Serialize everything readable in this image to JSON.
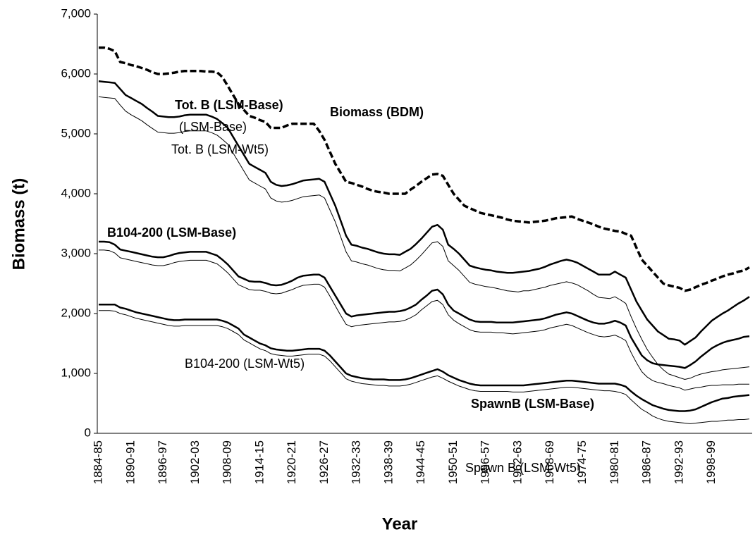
{
  "chart_data": {
    "type": "line",
    "x_label": "Year",
    "y_label": "Biomass (t)",
    "annotations": [
      "(LSM-Base)"
    ],
    "categories": [
      "1884-85",
      null,
      null,
      null,
      null,
      null,
      "1890-91",
      null,
      null,
      null,
      null,
      null,
      "1896-97",
      null,
      null,
      null,
      null,
      null,
      "1902-03",
      null,
      null,
      null,
      null,
      null,
      "1908-09",
      null,
      null,
      null,
      null,
      null,
      "1914-15",
      null,
      null,
      null,
      null,
      null,
      "1920-21",
      null,
      null,
      null,
      null,
      null,
      "1926-27",
      null,
      null,
      null,
      null,
      null,
      "1932-33",
      null,
      null,
      null,
      null,
      null,
      "1938-39",
      null,
      null,
      null,
      null,
      null,
      "1944-45",
      null,
      null,
      null,
      null,
      null,
      "1950-51",
      null,
      null,
      null,
      null,
      null,
      "1956-57",
      null,
      null,
      null,
      null,
      null,
      "1962-63",
      null,
      null,
      null,
      null,
      null,
      "1968-69",
      null,
      null,
      null,
      null,
      null,
      "1974-75",
      null,
      null,
      null,
      null,
      null,
      "1980-81",
      null,
      null,
      null,
      null,
      null,
      "1986-87",
      null,
      null,
      null,
      null,
      null,
      "1992-93",
      null,
      null,
      null,
      null,
      null,
      "1998-99",
      null,
      null,
      null,
      null,
      null,
      null,
      null
    ],
    "ylim": [
      0,
      7000
    ],
    "yticks": [
      0,
      {
        "value": 1000,
        "label": "1,000"
      },
      {
        "value": 2000,
        "label": "2,000"
      },
      {
        "value": 3000,
        "label": "3,000"
      },
      {
        "value": 4000,
        "label": "4,000"
      },
      {
        "value": 5000,
        "label": "5,000"
      },
      {
        "value": 6000,
        "label": "6,000"
      },
      {
        "value": 7000,
        "label": "7,000"
      }
    ],
    "grid": false,
    "series": [
      {
        "name": "Biomass (BDM)",
        "color": "#000000",
        "style": "dashed",
        "values": [
          6440,
          6440,
          6420,
          6380,
          6200,
          6180,
          6150,
          6130,
          6100,
          6070,
          6030,
          6000,
          6000,
          6010,
          6020,
          6040,
          6050,
          6050,
          6050,
          6050,
          6040,
          6040,
          6030,
          5950,
          5800,
          5650,
          5500,
          5400,
          5300,
          5270,
          5230,
          5200,
          5100,
          5100,
          5100,
          5140,
          5170,
          5170,
          5170,
          5170,
          5170,
          5050,
          4900,
          4700,
          4500,
          4350,
          4200,
          4180,
          4150,
          4120,
          4080,
          4050,
          4030,
          4020,
          4000,
          4000,
          4000,
          4000,
          4070,
          4130,
          4200,
          4260,
          4320,
          4330,
          4300,
          4150,
          4000,
          3900,
          3800,
          3760,
          3720,
          3680,
          3660,
          3640,
          3620,
          3600,
          3570,
          3550,
          3540,
          3530,
          3520,
          3530,
          3540,
          3550,
          3570,
          3590,
          3600,
          3610,
          3620,
          3580,
          3550,
          3520,
          3490,
          3450,
          3420,
          3400,
          3380,
          3370,
          3330,
          3300,
          3100,
          2900,
          2800,
          2700,
          2600,
          2500,
          2470,
          2450,
          2430,
          2380,
          2400,
          2440,
          2480,
          2510,
          2550,
          2580,
          2620,
          2650,
          2670,
          2700,
          2720,
          2770
        ]
      },
      {
        "name": "Tot. B (LSM-Base)",
        "color": "#000000",
        "style": "thick",
        "values": [
          5880,
          5870,
          5860,
          5850,
          5750,
          5650,
          5600,
          5550,
          5500,
          5430,
          5370,
          5300,
          5290,
          5280,
          5280,
          5290,
          5310,
          5320,
          5320,
          5320,
          5320,
          5290,
          5250,
          5180,
          5100,
          4950,
          4800,
          4650,
          4500,
          4450,
          4400,
          4350,
          4200,
          4150,
          4130,
          4140,
          4160,
          4190,
          4220,
          4230,
          4240,
          4250,
          4200,
          4000,
          3800,
          3550,
          3300,
          3150,
          3130,
          3100,
          3080,
          3050,
          3020,
          3000,
          2990,
          2990,
          2980,
          3030,
          3080,
          3160,
          3250,
          3350,
          3450,
          3480,
          3400,
          3150,
          3080,
          3000,
          2900,
          2800,
          2770,
          2750,
          2730,
          2720,
          2700,
          2690,
          2680,
          2680,
          2690,
          2700,
          2710,
          2730,
          2750,
          2780,
          2820,
          2850,
          2880,
          2900,
          2880,
          2850,
          2800,
          2750,
          2700,
          2650,
          2650,
          2650,
          2700,
          2650,
          2600,
          2400,
          2200,
          2050,
          1900,
          1800,
          1700,
          1640,
          1580,
          1570,
          1550,
          1480,
          1540,
          1600,
          1700,
          1790,
          1880,
          1940,
          2000,
          2050,
          2110,
          2170,
          2220,
          2280
        ]
      },
      {
        "name": "Tot. B (LSM-Wt5)",
        "color": "#000000",
        "style": "thin",
        "values": [
          5620,
          5610,
          5600,
          5590,
          5480,
          5380,
          5320,
          5270,
          5220,
          5150,
          5090,
          5030,
          5020,
          5010,
          5010,
          5020,
          5040,
          5050,
          5050,
          5050,
          5050,
          5020,
          4980,
          4910,
          4830,
          4680,
          4530,
          4380,
          4230,
          4180,
          4130,
          4080,
          3930,
          3880,
          3860,
          3870,
          3890,
          3920,
          3950,
          3960,
          3970,
          3980,
          3930,
          3730,
          3530,
          3280,
          3030,
          2880,
          2860,
          2830,
          2810,
          2780,
          2750,
          2730,
          2720,
          2720,
          2710,
          2760,
          2810,
          2890,
          2980,
          3080,
          3180,
          3200,
          3120,
          2880,
          2800,
          2720,
          2620,
          2520,
          2490,
          2470,
          2450,
          2440,
          2420,
          2400,
          2380,
          2370,
          2360,
          2380,
          2380,
          2400,
          2420,
          2440,
          2470,
          2490,
          2510,
          2530,
          2510,
          2480,
          2430,
          2380,
          2320,
          2270,
          2260,
          2250,
          2280,
          2230,
          2170,
          1950,
          1750,
          1570,
          1400,
          1270,
          1150,
          1060,
          990,
          960,
          930,
          900,
          920,
          960,
          990,
          1010,
          1030,
          1040,
          1060,
          1070,
          1080,
          1090,
          1100,
          1110
        ]
      },
      {
        "name": "B104-200 (LSM-Base)",
        "color": "#000000",
        "style": "thick",
        "values": [
          3200,
          3200,
          3190,
          3150,
          3070,
          3050,
          3030,
          3010,
          2990,
          2970,
          2950,
          2940,
          2940,
          2960,
          2990,
          3010,
          3020,
          3030,
          3030,
          3030,
          3030,
          3000,
          2970,
          2900,
          2820,
          2720,
          2620,
          2580,
          2540,
          2530,
          2530,
          2510,
          2480,
          2470,
          2480,
          2510,
          2550,
          2600,
          2630,
          2640,
          2650,
          2650,
          2600,
          2450,
          2300,
          2150,
          2000,
          1950,
          1970,
          1980,
          1990,
          2000,
          2010,
          2020,
          2030,
          2030,
          2040,
          2060,
          2100,
          2150,
          2230,
          2300,
          2380,
          2400,
          2320,
          2150,
          2050,
          2000,
          1950,
          1900,
          1870,
          1860,
          1860,
          1860,
          1850,
          1850,
          1850,
          1850,
          1860,
          1870,
          1880,
          1890,
          1900,
          1920,
          1950,
          1980,
          2000,
          2020,
          2000,
          1960,
          1920,
          1880,
          1850,
          1830,
          1830,
          1850,
          1880,
          1850,
          1800,
          1600,
          1450,
          1300,
          1220,
          1170,
          1150,
          1140,
          1130,
          1120,
          1110,
          1090,
          1140,
          1200,
          1280,
          1350,
          1420,
          1470,
          1510,
          1540,
          1560,
          1580,
          1610,
          1620
        ]
      },
      {
        "name": "B104-200 (LSM-Wt5)",
        "color": "#000000",
        "style": "thin",
        "values": [
          3060,
          3060,
          3050,
          3010,
          2930,
          2910,
          2890,
          2870,
          2850,
          2830,
          2810,
          2800,
          2800,
          2820,
          2850,
          2870,
          2880,
          2890,
          2890,
          2890,
          2890,
          2860,
          2830,
          2760,
          2680,
          2580,
          2480,
          2440,
          2400,
          2390,
          2390,
          2370,
          2340,
          2330,
          2340,
          2370,
          2400,
          2440,
          2470,
          2480,
          2490,
          2490,
          2440,
          2290,
          2130,
          1970,
          1820,
          1780,
          1800,
          1810,
          1820,
          1830,
          1840,
          1850,
          1860,
          1860,
          1870,
          1890,
          1930,
          1980,
          2060,
          2130,
          2200,
          2220,
          2150,
          1980,
          1890,
          1830,
          1780,
          1730,
          1700,
          1690,
          1690,
          1690,
          1680,
          1680,
          1670,
          1660,
          1670,
          1680,
          1690,
          1700,
          1710,
          1730,
          1760,
          1780,
          1800,
          1820,
          1800,
          1760,
          1720,
          1680,
          1650,
          1620,
          1610,
          1620,
          1640,
          1600,
          1550,
          1350,
          1180,
          1030,
          940,
          880,
          850,
          830,
          800,
          780,
          760,
          720,
          740,
          760,
          770,
          790,
          800,
          800,
          810,
          810,
          810,
          820,
          820,
          820
        ]
      },
      {
        "name": "SpawnB (LSM-Base)",
        "color": "#000000",
        "style": "thick",
        "values": [
          2150,
          2150,
          2150,
          2150,
          2100,
          2080,
          2050,
          2020,
          2000,
          1980,
          1960,
          1940,
          1920,
          1900,
          1890,
          1890,
          1900,
          1900,
          1900,
          1900,
          1900,
          1900,
          1900,
          1880,
          1850,
          1800,
          1750,
          1650,
          1600,
          1550,
          1500,
          1470,
          1420,
          1400,
          1390,
          1380,
          1380,
          1390,
          1400,
          1410,
          1410,
          1410,
          1380,
          1300,
          1200,
          1100,
          1000,
          960,
          940,
          920,
          910,
          900,
          900,
          900,
          890,
          890,
          890,
          900,
          920,
          950,
          980,
          1010,
          1040,
          1070,
          1030,
          970,
          930,
          890,
          860,
          830,
          810,
          800,
          800,
          800,
          800,
          800,
          800,
          800,
          800,
          800,
          810,
          820,
          830,
          840,
          850,
          860,
          870,
          880,
          880,
          870,
          860,
          850,
          840,
          830,
          830,
          830,
          830,
          810,
          780,
          700,
          630,
          570,
          520,
          470,
          440,
          410,
          390,
          380,
          370,
          370,
          380,
          400,
          440,
          480,
          520,
          550,
          580,
          590,
          610,
          620,
          630,
          640
        ]
      },
      {
        "name": "Spawn B (LSM-Wt5)",
        "color": "#000000",
        "style": "thin",
        "values": [
          2050,
          2050,
          2050,
          2040,
          2000,
          1980,
          1950,
          1920,
          1900,
          1880,
          1860,
          1840,
          1820,
          1800,
          1790,
          1790,
          1800,
          1800,
          1800,
          1800,
          1800,
          1800,
          1800,
          1780,
          1750,
          1700,
          1650,
          1560,
          1510,
          1460,
          1410,
          1380,
          1330,
          1310,
          1300,
          1290,
          1290,
          1300,
          1310,
          1320,
          1320,
          1320,
          1290,
          1210,
          1110,
          1010,
          910,
          870,
          850,
          830,
          820,
          810,
          800,
          800,
          790,
          790,
          790,
          800,
          820,
          850,
          880,
          910,
          940,
          960,
          920,
          870,
          830,
          790,
          760,
          730,
          710,
          700,
          700,
          700,
          700,
          700,
          700,
          690,
          690,
          690,
          700,
          710,
          720,
          730,
          740,
          750,
          760,
          770,
          770,
          760,
          750,
          740,
          730,
          720,
          710,
          710,
          700,
          680,
          650,
          560,
          480,
          400,
          350,
          290,
          250,
          220,
          200,
          190,
          180,
          170,
          160,
          170,
          180,
          190,
          200,
          200,
          210,
          220,
          220,
          230,
          230,
          240
        ]
      }
    ]
  }
}
